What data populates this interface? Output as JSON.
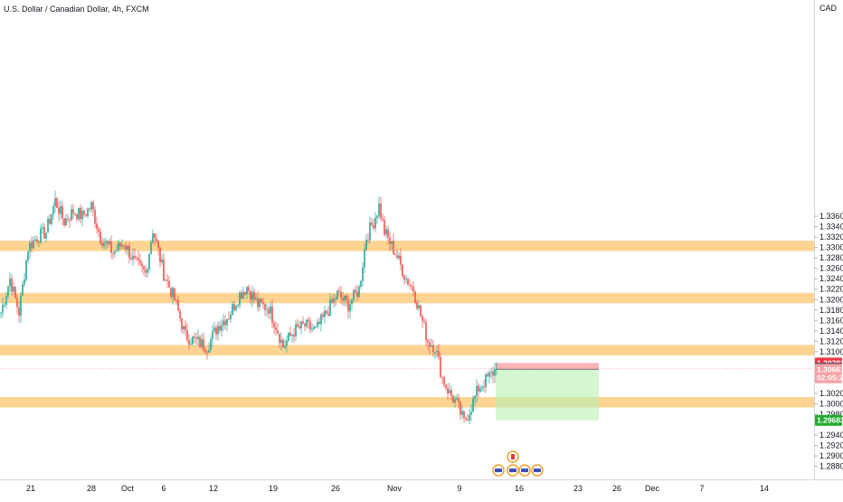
{
  "header": {
    "symbol_title": "U.S. Dollar / Canadian Dollar, 4h, FXCM",
    "currency": "CAD"
  },
  "colors": {
    "up": "#26a69a",
    "down": "#ef5350",
    "zone": "#ffcc80",
    "stop": "#f7a1a6",
    "target": "#b8f2b0",
    "label_red": "#f23645",
    "label_dark": "#555c69",
    "label_green": "#22ab2f"
  },
  "chart_data": {
    "type": "candlestick",
    "y_range": [
      1.2855,
      1.3775
    ],
    "y_ticks": [
      "1.33600",
      "1.33400",
      "1.33200",
      "1.33000",
      "1.32800",
      "1.32600",
      "1.32400",
      "1.32200",
      "1.32000",
      "1.31800",
      "1.31600",
      "1.31400",
      "1.31200",
      "1.31000",
      "1.30200",
      "1.30000",
      "1.29800",
      "1.29400",
      "1.29200",
      "1.29000",
      "1.28800"
    ],
    "x_ticks": [
      "21",
      "28",
      "Oct",
      "6",
      "12",
      "19",
      "26",
      "Nov",
      "9",
      "16",
      "23",
      "26",
      "Dec",
      "7",
      "14"
    ],
    "anchors": [
      [
        0,
        1.3175
      ],
      [
        5,
        1.324
      ],
      [
        10,
        1.3175
      ],
      [
        15,
        1.33
      ],
      [
        20,
        1.332
      ],
      [
        25,
        1.333
      ],
      [
        30,
        1.339
      ],
      [
        35,
        1.335
      ],
      [
        40,
        1.337
      ],
      [
        45,
        1.336
      ],
      [
        50,
        1.338
      ],
      [
        55,
        1.332
      ],
      [
        62,
        1.329
      ],
      [
        68,
        1.331
      ],
      [
        74,
        1.327
      ],
      [
        80,
        1.325
      ],
      [
        84,
        1.3335
      ],
      [
        90,
        1.325
      ],
      [
        96,
        1.32
      ],
      [
        102,
        1.313
      ],
      [
        108,
        1.312
      ],
      [
        114,
        1.311
      ],
      [
        120,
        1.315
      ],
      [
        126,
        1.317
      ],
      [
        132,
        1.321
      ],
      [
        136,
        1.3225
      ],
      [
        142,
        1.319
      ],
      [
        148,
        1.3185
      ],
      [
        152,
        1.315
      ],
      [
        156,
        1.311
      ],
      [
        162,
        1.314
      ],
      [
        168,
        1.315
      ],
      [
        174,
        1.314
      ],
      [
        180,
        1.3175
      ],
      [
        186,
        1.321
      ],
      [
        192,
        1.319
      ],
      [
        198,
        1.322
      ],
      [
        202,
        1.332
      ],
      [
        206,
        1.335
      ],
      [
        209,
        1.338
      ],
      [
        212,
        1.333
      ],
      [
        218,
        1.329
      ],
      [
        224,
        1.324
      ],
      [
        228,
        1.322
      ],
      [
        232,
        1.317
      ],
      [
        236,
        1.312
      ],
      [
        240,
        1.311
      ],
      [
        244,
        1.305
      ],
      [
        248,
        1.302
      ],
      [
        252,
        1.3
      ],
      [
        256,
        1.2965
      ],
      [
        260,
        1.2995
      ],
      [
        264,
        1.303
      ],
      [
        268,
        1.3045
      ],
      [
        272,
        1.306
      ],
      [
        274,
        1.3068
      ]
    ],
    "zones": [
      {
        "y1": 1.3293,
        "y2": 1.3313
      },
      {
        "y1": 1.3193,
        "y2": 1.3213
      },
      {
        "y1": 1.3093,
        "y2": 1.3113
      },
      {
        "y1": 1.2993,
        "y2": 1.3013
      }
    ],
    "position": {
      "entry": 1.30661,
      "stop": 1.30783,
      "target": 1.29683,
      "bar_start": 274,
      "bar_end": 331
    },
    "price_labels": [
      {
        "text": "1.30783",
        "value": 1.30783,
        "color": "#f23645"
      },
      {
        "text": "1.30683",
        "value": 1.30683,
        "color": "#555c69"
      },
      {
        "text": "1.30661",
        "value": 1.30661,
        "color": "#f7a1a6"
      },
      {
        "text": "02:05:26",
        "value": 1.305,
        "color": "#f7a1a6"
      },
      {
        "text": "1.29683",
        "value": 1.29683,
        "color": "#22ab2f"
      }
    ],
    "current_price": 1.30683
  }
}
